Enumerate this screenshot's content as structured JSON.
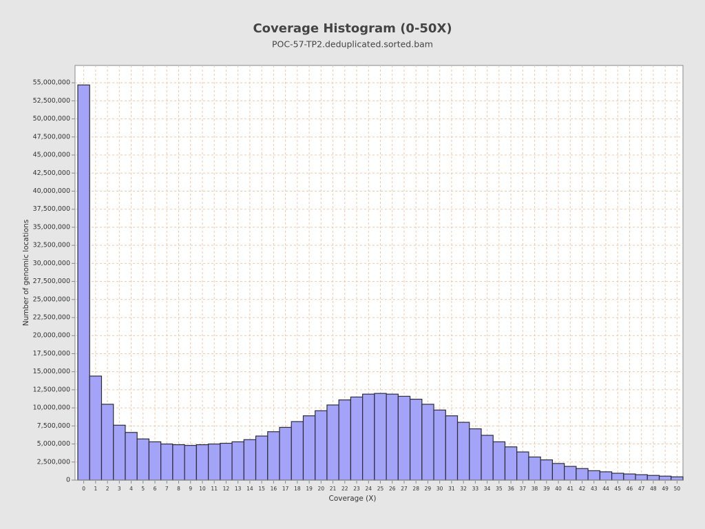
{
  "chart_data": {
    "type": "bar",
    "title": "Coverage Histogram (0-50X)",
    "subtitle": "POC-57-TP2.deduplicated.sorted.bam",
    "x_label": "Coverage (X)",
    "y_label": "Number of genomic locations",
    "categories": [
      0,
      1,
      2,
      3,
      4,
      5,
      6,
      7,
      8,
      9,
      10,
      11,
      12,
      13,
      14,
      15,
      16,
      17,
      18,
      19,
      20,
      21,
      22,
      23,
      24,
      25,
      26,
      27,
      28,
      29,
      30,
      31,
      32,
      33,
      34,
      35,
      36,
      37,
      38,
      39,
      40,
      41,
      42,
      43,
      44,
      45,
      46,
      47,
      48,
      49,
      50
    ],
    "values": [
      54700000,
      14400000,
      10500000,
      7600000,
      6600000,
      5700000,
      5300000,
      5000000,
      4900000,
      4800000,
      4900000,
      5000000,
      5100000,
      5300000,
      5600000,
      6100000,
      6700000,
      7300000,
      8100000,
      8900000,
      9600000,
      10400000,
      11100000,
      11500000,
      11900000,
      12000000,
      11900000,
      11600000,
      11200000,
      10500000,
      9700000,
      8900000,
      8000000,
      7100000,
      6200000,
      5300000,
      4600000,
      3900000,
      3200000,
      2800000,
      2300000,
      1900000,
      1600000,
      1300000,
      1150000,
      950000,
      850000,
      750000,
      650000,
      550000,
      450000
    ],
    "color": "#a3a3f7",
    "ylim": [
      0,
      57400000
    ],
    "yticks": [
      0,
      {
        "value": 2500000,
        "label": "2,500,000"
      },
      {
        "value": 5000000,
        "label": "5,000,000"
      },
      {
        "value": 7500000,
        "label": "7,500,000"
      },
      {
        "value": 10000000,
        "label": "10,000,000"
      },
      {
        "value": 12500000,
        "label": "12,500,000"
      },
      {
        "value": 15000000,
        "label": "15,000,000"
      },
      {
        "value": 17500000,
        "label": "17,500,000"
      },
      {
        "value": 20000000,
        "label": "20,000,000"
      },
      {
        "value": 22500000,
        "label": "22,500,000"
      },
      {
        "value": 25000000,
        "label": "25,000,000"
      },
      {
        "value": 27500000,
        "label": "27,500,000"
      },
      {
        "value": 30000000,
        "label": "30,000,000"
      },
      {
        "value": 32500000,
        "label": "32,500,000"
      },
      {
        "value": 35000000,
        "label": "35,000,000"
      },
      {
        "value": 37500000,
        "label": "37,500,000"
      },
      {
        "value": 40000000,
        "label": "40,000,000"
      },
      {
        "value": 42500000,
        "label": "42,500,000"
      },
      {
        "value": 45000000,
        "label": "45,000,000"
      },
      {
        "value": 47500000,
        "label": "47,500,000"
      },
      {
        "value": 50000000,
        "label": "50,000,000"
      },
      {
        "value": 52500000,
        "label": "52,500,000"
      },
      {
        "value": 55000000,
        "label": "55,000,000"
      }
    ],
    "grid": true
  }
}
